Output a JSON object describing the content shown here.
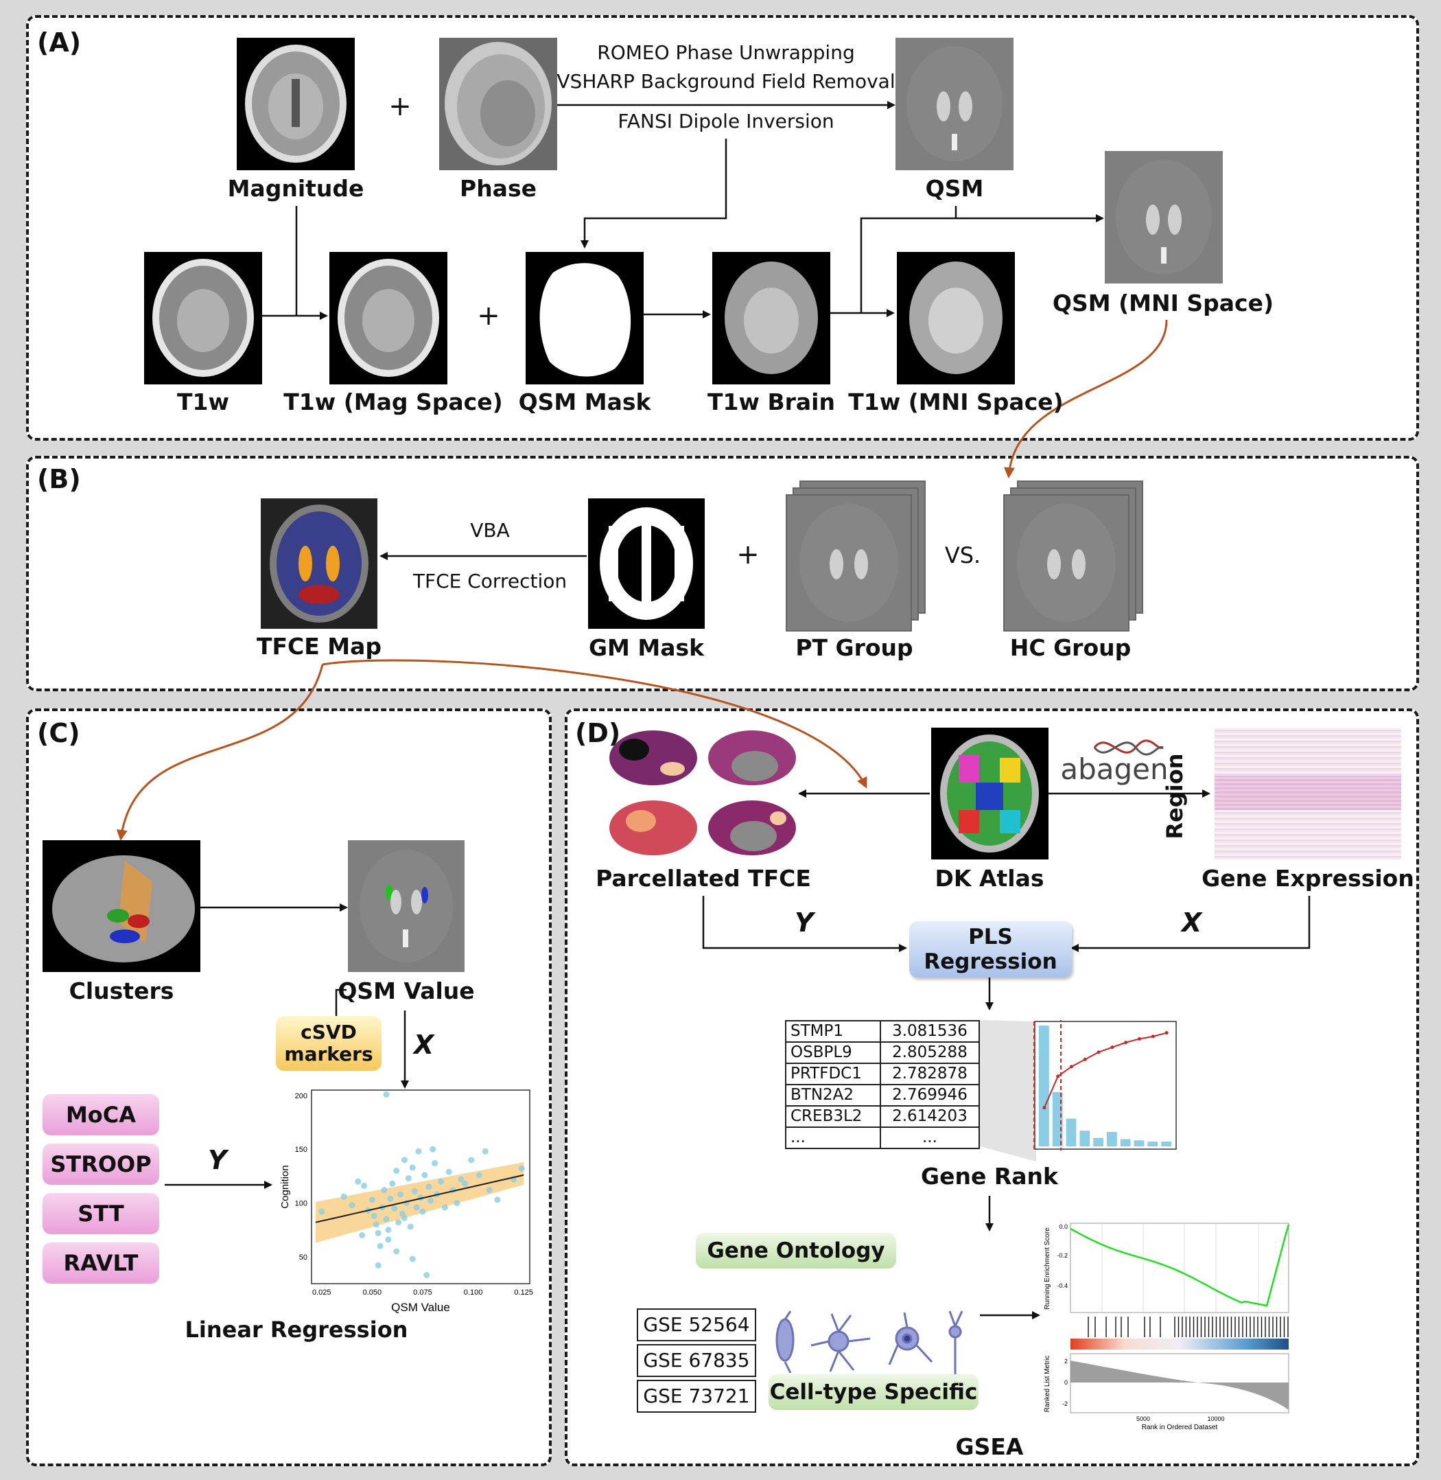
{
  "panels": {
    "a": "(A)",
    "b": "(B)",
    "c": "(C)",
    "d": "(D)"
  },
  "panel_a": {
    "magnitude": "Magnitude",
    "phase": "Phase",
    "qsm": "QSM",
    "qsm_mni": "QSM (MNI Space)",
    "t1w": "T1w",
    "t1w_mag": "T1w (Mag Space)",
    "qsm_mask": "QSM Mask",
    "t1w_brain": "T1w Brain",
    "t1w_mni": "T1w (MNI Space)",
    "step1": "ROMEO Phase Unwrapping",
    "step2": "VSHARP Background Field Removal",
    "step3": "FANSI Dipole Inversion",
    "plus": "+"
  },
  "panel_b": {
    "tfce_map": "TFCE Map",
    "gm_mask": "GM Mask",
    "pt_group": "PT Group",
    "hc_group": "HC Group",
    "vba": "VBA",
    "tfce_correction": "TFCE Correction",
    "vs": "VS.",
    "plus": "+"
  },
  "panel_c": {
    "clusters": "Clusters",
    "qsm_value": "QSM Value",
    "csvd_markers": "cSVD\nmarkers",
    "x_label": "X",
    "y_label": "Y",
    "tests": [
      "MoCA",
      "STROOP",
      "STT",
      "RAVLT"
    ],
    "linear_regression": "Linear Regression"
  },
  "panel_d": {
    "parcellated_tfce": "Parcellated TFCE",
    "dk_atlas": "DK Atlas",
    "gene_expression": "Gene Expression",
    "abagen": "abagen",
    "region": "Region",
    "y_label": "Y",
    "x_label": "X",
    "pls": "PLS\nRegression",
    "gene_rank": "Gene Rank",
    "gene_table": [
      {
        "gene": "STMP1",
        "value": "3.081536"
      },
      {
        "gene": "OSBPL9",
        "value": "2.805288"
      },
      {
        "gene": "PRTFDC1",
        "value": "2.782878"
      },
      {
        "gene": "BTN2A2",
        "value": "2.769946"
      },
      {
        "gene": "CREB3L2",
        "value": "2.614203"
      },
      {
        "gene": "...",
        "value": "..."
      }
    ],
    "gene_ontology": "Gene Ontology",
    "cell_type_specific": "Cell-type Specific",
    "gse": [
      "GSE 52564",
      "GSE 67835",
      "GSE 73721"
    ],
    "gsea": "GSEA",
    "gsea_plot": {
      "ylabel_top": "Running Enrichment Score",
      "ylabel_bottom": "Ranked List Metric",
      "xlabel": "Rank in Ordered Dataset",
      "top_ticks": [
        "0.0",
        "-0.2",
        "-0.4"
      ],
      "bottom_ticks": [
        "2",
        "0",
        "-2"
      ],
      "x_ticks": [
        "5000",
        "10000"
      ]
    }
  },
  "chart_data": {
    "type": "scatter",
    "xlabel": "QSM Value",
    "ylabel": "Cognition",
    "xlim": [
      0.02,
      0.128
    ],
    "ylim": [
      25,
      205
    ],
    "x_ticks": [
      0.025,
      0.05,
      0.075,
      0.1,
      0.125
    ],
    "y_ticks": [
      50,
      100,
      150,
      200
    ],
    "points": [
      [
        0.057,
        201
      ],
      [
        0.025,
        92
      ],
      [
        0.036,
        106
      ],
      [
        0.04,
        98
      ],
      [
        0.043,
        120
      ],
      [
        0.046,
        116
      ],
      [
        0.048,
        93
      ],
      [
        0.05,
        103
      ],
      [
        0.051,
        88
      ],
      [
        0.052,
        80
      ],
      [
        0.053,
        72
      ],
      [
        0.054,
        60
      ],
      [
        0.055,
        96
      ],
      [
        0.056,
        112
      ],
      [
        0.057,
        85
      ],
      [
        0.058,
        75
      ],
      [
        0.058,
        66
      ],
      [
        0.059,
        104
      ],
      [
        0.06,
        118
      ],
      [
        0.061,
        95
      ],
      [
        0.062,
        130
      ],
      [
        0.063,
        82
      ],
      [
        0.064,
        108
      ],
      [
        0.065,
        90
      ],
      [
        0.066,
        140
      ],
      [
        0.067,
        100
      ],
      [
        0.068,
        123
      ],
      [
        0.069,
        78
      ],
      [
        0.07,
        133
      ],
      [
        0.071,
        111
      ],
      [
        0.072,
        96
      ],
      [
        0.073,
        148
      ],
      [
        0.074,
        105
      ],
      [
        0.075,
        92
      ],
      [
        0.076,
        126
      ],
      [
        0.077,
        33
      ],
      [
        0.078,
        115
      ],
      [
        0.079,
        102
      ],
      [
        0.081,
        137
      ],
      [
        0.082,
        108
      ],
      [
        0.084,
        120
      ],
      [
        0.086,
        96
      ],
      [
        0.088,
        129
      ],
      [
        0.09,
        112
      ],
      [
        0.092,
        100
      ],
      [
        0.094,
        122
      ],
      [
        0.096,
        118
      ],
      [
        0.099,
        140
      ],
      [
        0.103,
        126
      ],
      [
        0.106,
        148
      ],
      [
        0.108,
        112
      ],
      [
        0.112,
        103
      ],
      [
        0.12,
        122
      ],
      [
        0.124,
        132
      ],
      [
        0.045,
        70
      ],
      [
        0.062,
        55
      ],
      [
        0.07,
        48
      ],
      [
        0.08,
        150
      ],
      [
        0.053,
        42
      ],
      [
        0.066,
        86
      ]
    ],
    "fit_line": {
      "x": [
        0.022,
        0.125
      ],
      "y": [
        82,
        126
      ]
    },
    "ci_band": {
      "x": [
        0.022,
        0.125
      ],
      "lower": [
        63,
        117
      ],
      "upper": [
        101,
        138
      ]
    },
    "colors": {
      "points": "#8fd0e2",
      "band": "#f6c56e",
      "line": "#1f1f1f"
    }
  },
  "gene_rank_chart": {
    "type": "bar",
    "bar_values": [
      1.0,
      0.45,
      0.23,
      0.13,
      0.07,
      0.12,
      0.06,
      0.05,
      0.04,
      0.04
    ],
    "line_values": [
      0.32,
      0.58,
      0.66,
      0.72,
      0.78,
      0.82,
      0.86,
      0.89,
      0.91,
      0.94
    ],
    "colors": {
      "bars": "#8ccde6",
      "line": "#c62828",
      "highlight": "#e02020"
    }
  }
}
